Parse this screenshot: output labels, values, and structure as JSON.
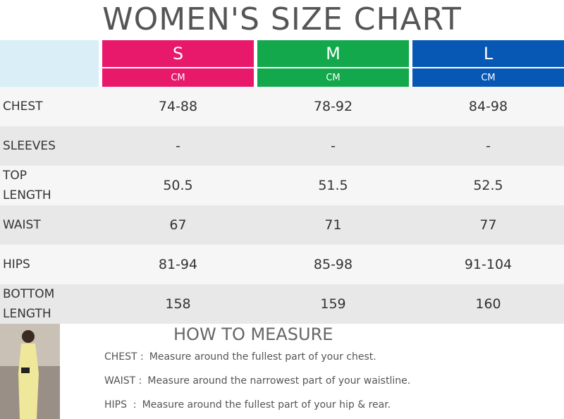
{
  "header": {
    "title": "WOMEN'S SIZE CHART"
  },
  "table": {
    "sizes": [
      {
        "name": "S",
        "unit": "CM",
        "color": "#e8186a"
      },
      {
        "name": "M",
        "unit": "CM",
        "color": "#12a84b"
      },
      {
        "name": "L",
        "unit": "CM",
        "color": "#0757b5"
      }
    ],
    "rows": [
      [
        "CHEST",
        "74-88",
        "78-92",
        "84-98"
      ],
      [
        "SLEEVES",
        "-",
        "-",
        "-"
      ],
      [
        "TOP LENGTH",
        "50.5",
        "51.5",
        "52.5"
      ],
      [
        "WAIST",
        "67",
        "71",
        "77"
      ],
      [
        "HIPS",
        "81-94",
        "85-98",
        "91-104"
      ],
      [
        "BOTTOM LENGTH",
        "158",
        "159",
        "160"
      ]
    ]
  },
  "measure": {
    "title": "HOW TO MEASURE",
    "items": [
      {
        "label": "CHEST :",
        "text": "Measure around the fullest part of your chest."
      },
      {
        "label": "WAIST :",
        "text": "Measure around the narrowest part of your waistline."
      },
      {
        "label": "HIPS  :",
        "text": "Measure around the fullest part of your hip & rear."
      }
    ]
  }
}
